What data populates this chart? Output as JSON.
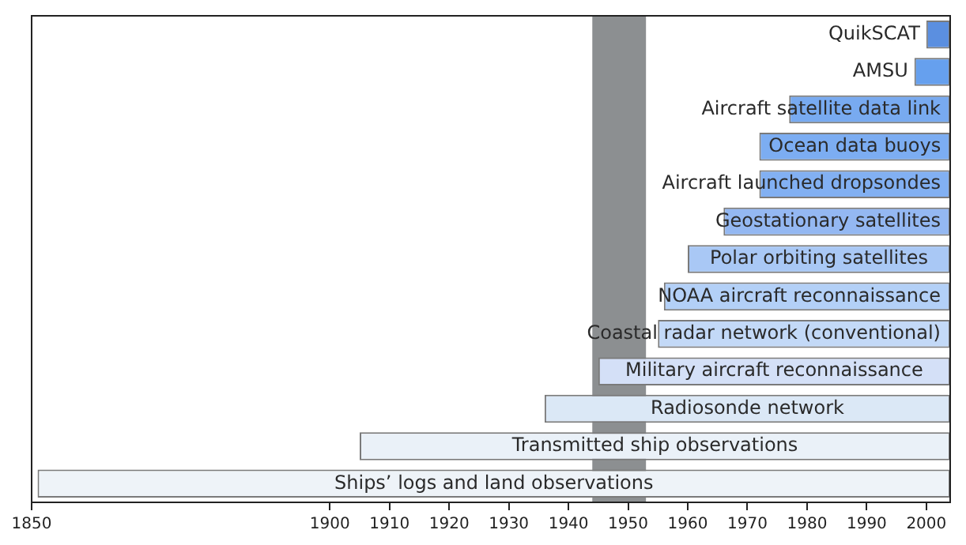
{
  "chart_data": {
    "type": "bar",
    "orientation": "horizontal",
    "categories": [
      "QuikSCAT",
      "AMSU",
      "Aircraft satellite data link",
      "Ocean data buoys",
      "Aircraft launched dropsondes",
      "Geostationary satellites",
      "Polar orbiting satellites",
      "NOAA aircraft reconnaissance",
      "Coastal radar network (conventional)",
      "Military aircraft reconnaissance",
      "Radiosonde network",
      "Transmitted ship observations",
      "Ships’ logs and land observations"
    ],
    "base": [
      2000,
      1998,
      1977,
      1972,
      1972,
      1966,
      1960,
      1956,
      1955,
      1945,
      1936,
      1905,
      1851
    ],
    "values": [
      4,
      6,
      27,
      32,
      32,
      38,
      44,
      48,
      49,
      59,
      68,
      99,
      153
    ],
    "colors": [
      "#5b8fe0",
      "#66a0ee",
      "#78aaf0",
      "#7cadf2",
      "#82b0f2",
      "#94b8f2",
      "#a9c8f5",
      "#b3d0f7",
      "#c3d9f7",
      "#d4e0f7",
      "#dbe8f6",
      "#eaf1f8",
      "#eef3f8"
    ],
    "xlim": [
      1850,
      2004
    ],
    "xticks": [
      1850,
      1900,
      1910,
      1920,
      1930,
      1940,
      1950,
      1960,
      1970,
      1980,
      1990,
      2000
    ],
    "bands": [
      {
        "axis": "x",
        "from": 1944,
        "to": 1953,
        "label": null,
        "color": "#8c8f91"
      }
    ],
    "tick_labels": "x",
    "grid": false,
    "legend": false
  }
}
